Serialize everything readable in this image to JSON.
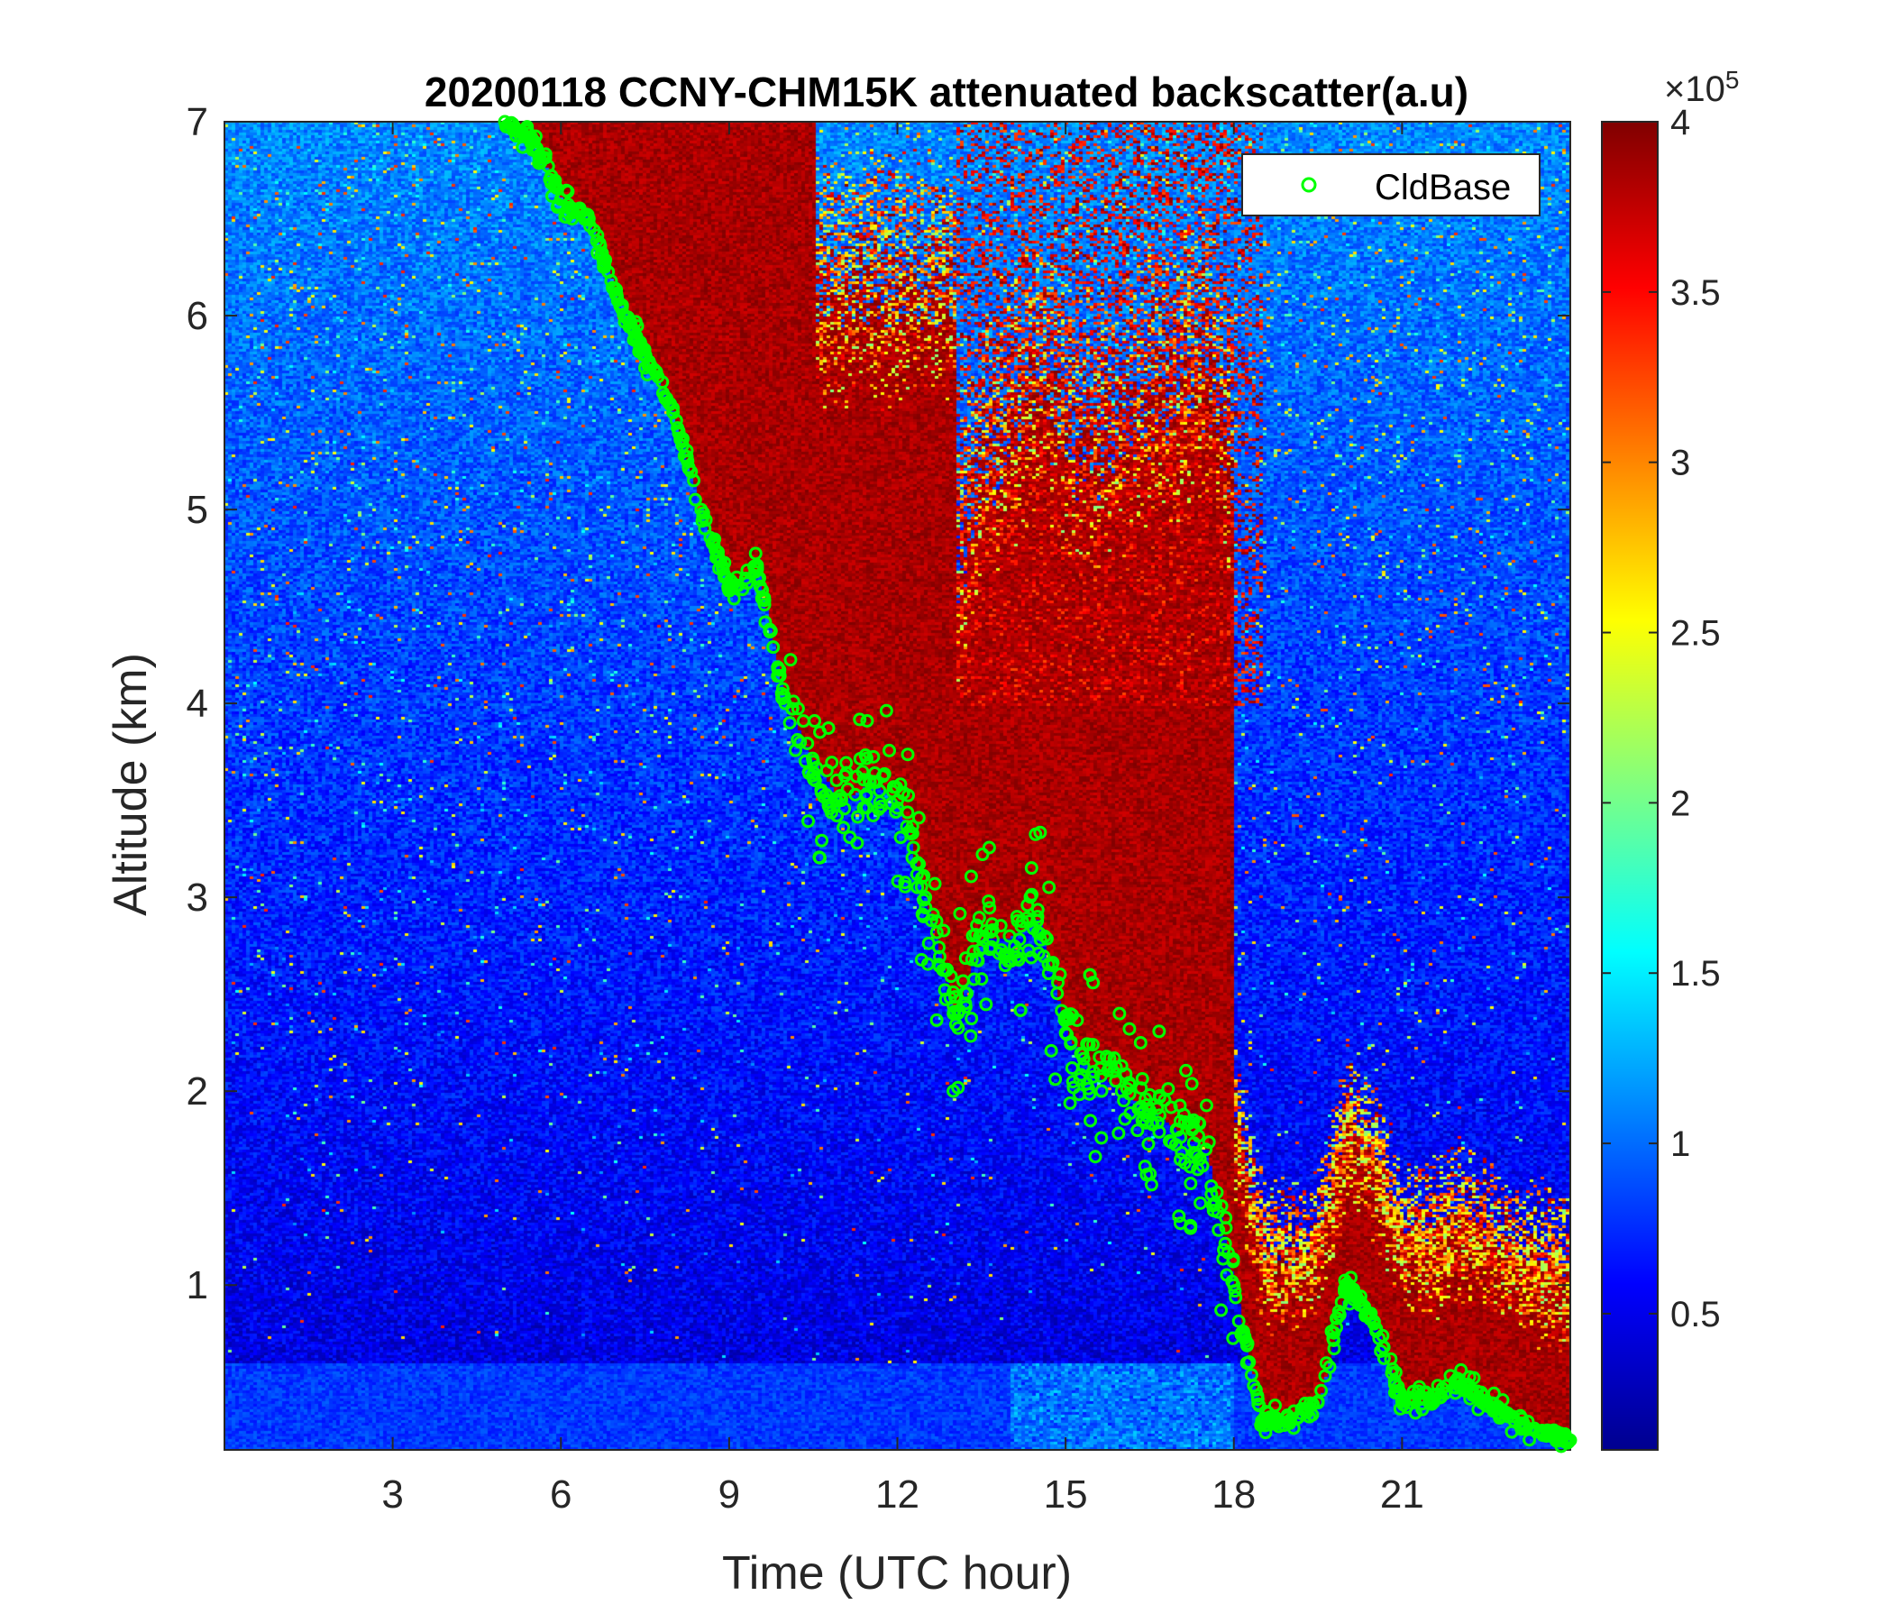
{
  "chart_data": {
    "type": "heatmap",
    "title": "20200118 CCNY-CHM15K attenuated backscatter(a.u)",
    "xlabel": "Time (UTC hour)",
    "ylabel": "Altitude (km)",
    "xlim": [
      0,
      24
    ],
    "ylim": [
      0.15,
      7
    ],
    "xticks": [
      3,
      6,
      9,
      12,
      15,
      18,
      21
    ],
    "xtick_labels": [
      "3",
      "6",
      "9",
      "12",
      "15",
      "18",
      "21"
    ],
    "yticks": [
      1,
      2,
      3,
      4,
      5,
      6,
      7
    ],
    "ytick_labels": [
      "1",
      "2",
      "3",
      "4",
      "5",
      "6",
      "7"
    ],
    "colorbar": {
      "colormap": "jet",
      "range": [
        0.1,
        4
      ],
      "ticks": [
        0.5,
        1,
        1.5,
        2,
        2.5,
        3,
        3.5,
        4
      ],
      "tick_labels": [
        "0.5",
        "1",
        "1.5",
        "2",
        "2.5",
        "3",
        "3.5",
        "4"
      ],
      "multiplier_base": "×10",
      "multiplier_exp": "5"
    },
    "legend": {
      "entries": [
        "CldBase"
      ],
      "placement": "top-right"
    },
    "series": [
      {
        "name": "CldBase",
        "marker": "circle",
        "color": "#00ff00",
        "x": [
          5.0,
          5.5,
          6.0,
          6.5,
          7.0,
          7.5,
          8.0,
          8.5,
          9.0,
          9.5,
          10.0,
          10.5,
          11.0,
          11.5,
          12.0,
          12.5,
          13.0,
          13.5,
          14.0,
          14.5,
          15.0,
          15.5,
          16.0,
          16.5,
          17.0,
          17.5,
          18.0,
          18.5,
          19.0,
          19.5,
          20.0,
          20.5,
          21.0,
          21.5,
          22.0,
          22.5,
          23.0,
          23.5,
          24.0
        ],
        "y": [
          7.0,
          6.9,
          6.6,
          6.5,
          6.1,
          5.8,
          5.5,
          5.0,
          4.6,
          4.7,
          4.0,
          3.7,
          3.5,
          3.6,
          3.5,
          3.0,
          2.4,
          2.8,
          2.8,
          2.9,
          2.3,
          2.1,
          2.0,
          1.9,
          1.8,
          1.7,
          1.0,
          0.3,
          0.3,
          0.4,
          1.0,
          0.8,
          0.4,
          0.4,
          0.5,
          0.4,
          0.3,
          0.25,
          0.2
        ]
      }
    ]
  }
}
